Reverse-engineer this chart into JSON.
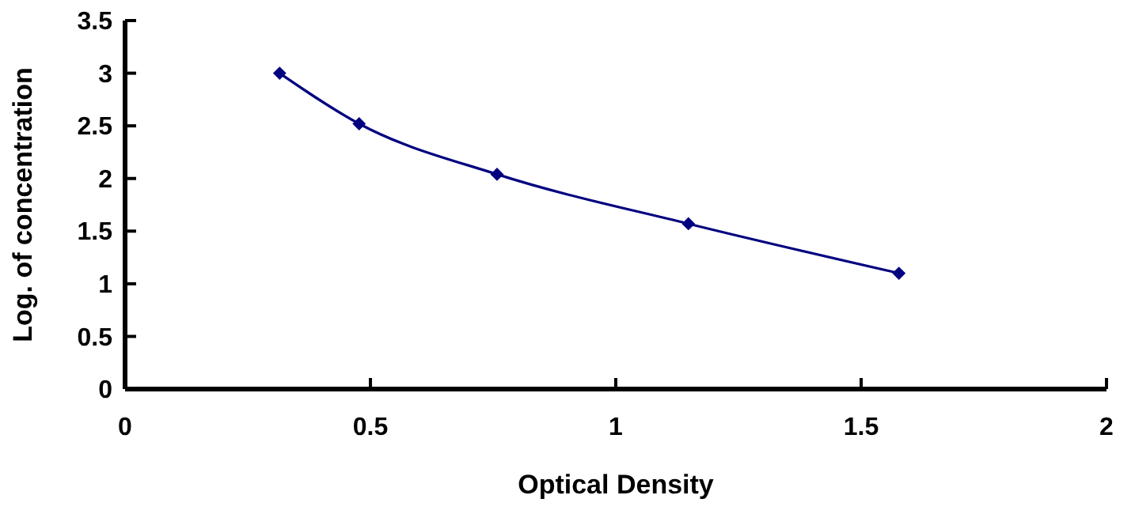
{
  "chart_data": {
    "type": "line",
    "xlabel": "Optical Density",
    "ylabel": "Log. of concentration",
    "x": [
      0.315,
      0.477,
      0.758,
      1.148,
      1.577
    ],
    "series": [
      {
        "color": "#000080",
        "values": [
          3.0,
          2.52,
          2.04,
          1.57,
          1.1
        ]
      }
    ],
    "xlim": [
      0,
      2
    ],
    "xticks": [
      0,
      0.5,
      1,
      1.5,
      2
    ],
    "ylim": [
      0,
      3.5
    ],
    "yticks": [
      0,
      0.5,
      1,
      1.5,
      2,
      2.5,
      3,
      3.5
    ],
    "marker": "diamond",
    "line_style": "solid",
    "grid": false
  }
}
